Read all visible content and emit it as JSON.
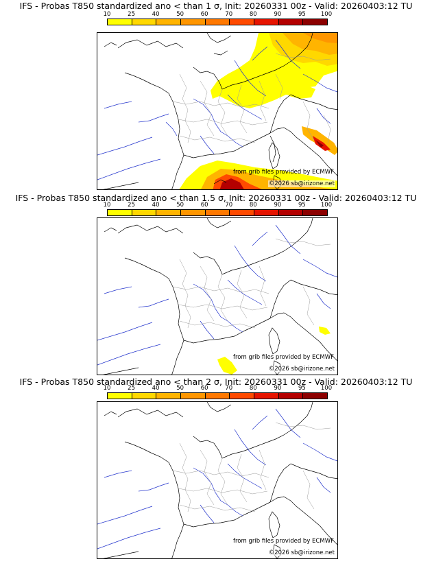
{
  "panels": [
    {
      "title": "IFS - Probas T850  standardized ano < than 1 σ, Init: 20260331 00z - Valid: 20260403:12 TU"
    },
    {
      "title": "IFS - Probas T850  standardized ano < than 1.5 σ, Init: 20260331 00z - Valid: 20260403:12 TU"
    },
    {
      "title": "IFS - Probas T850  standardized ano < than 2 σ, Init: 20260331 00z - Valid: 20260403:12 TU"
    }
  ],
  "colorbar": {
    "ticks": [
      "10",
      "25",
      "40",
      "50",
      "60",
      "70",
      "80",
      "90",
      "95",
      "100"
    ],
    "colors": [
      "#ffff00",
      "#ffd800",
      "#ffb400",
      "#ff9600",
      "#ff7800",
      "#ff4a00",
      "#e61400",
      "#b40000",
      "#8c0000",
      "#5a0000"
    ]
  },
  "credits": {
    "source": "from grib files provided by ECMWF",
    "copyright": "©2026 sb@irizone.net"
  }
}
